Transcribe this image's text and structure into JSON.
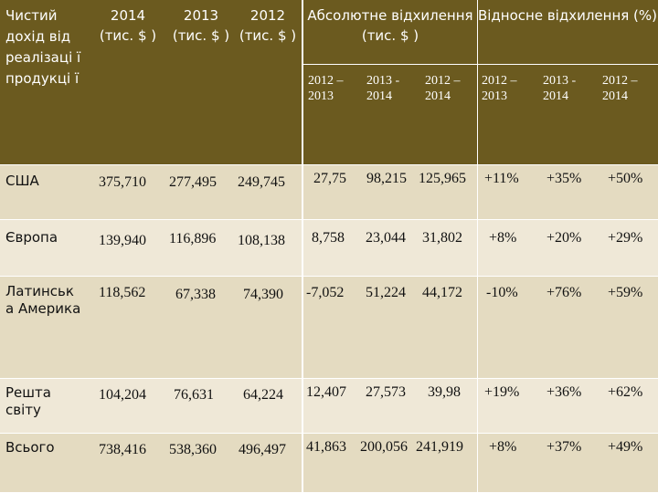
{
  "colors": {
    "header_bg": "#6b5a1f",
    "row_light": "#efe8d7",
    "row_dark": "#e4dbc1",
    "grid": "#ffffff",
    "text": "#111111"
  },
  "header": {
    "title": "Чистий дохід від реалізаці ї продукці ї",
    "y2014": "2014 (тис. $ )",
    "y2013": "2013 (тис. $ )",
    "y2012": "2012 (тис. $ )",
    "abs_group": "Абсолютне відхилення (тис. $ )",
    "rel_group": "Відносне відхилення (%)",
    "abs_sub": [
      "2012 – 2013",
      "2013 - 2014",
      "2012 – 2014"
    ],
    "rel_sub": [
      "2012 – 2013",
      "2013 - 2014",
      "2012 – 2014"
    ]
  },
  "rows": [
    {
      "region": "США",
      "y2014": "375,710",
      "y2013": "277,495",
      "y2012": "249,745",
      "abs": [
        "27,75",
        "98,215",
        "125,965"
      ],
      "rel": [
        "+11%",
        "+35%",
        "+50%"
      ]
    },
    {
      "region": "Європа",
      "y2014": "139,940",
      "y2013": "116,896",
      "y2012": "108,138",
      "abs": [
        "8,758",
        "23,044",
        "31,802"
      ],
      "rel": [
        "+8%",
        "+20%",
        "+29%"
      ]
    },
    {
      "region": "Латинськ а Америка",
      "y2014": "118,562",
      "y2013": "67,338",
      "y2012": "74,390",
      "abs": [
        "-7,052",
        "51,224",
        "44,172"
      ],
      "rel": [
        "-10%",
        "+76%",
        "+59%"
      ]
    },
    {
      "region": "Решта світу",
      "y2014": "104,204",
      "y2013": "76,631",
      "y2012": "64,224",
      "abs": [
        "12,407",
        "27,573",
        "39,98"
      ],
      "rel": [
        "+19%",
        "+36%",
        "+62%"
      ]
    },
    {
      "region": "Всього",
      "y2014": "738,416",
      "y2013": "538,360",
      "y2012": "496,497",
      "abs": [
        "41,863",
        "200,056",
        "241,919"
      ],
      "rel": [
        "+8%",
        "+37%",
        "+49%"
      ]
    }
  ]
}
